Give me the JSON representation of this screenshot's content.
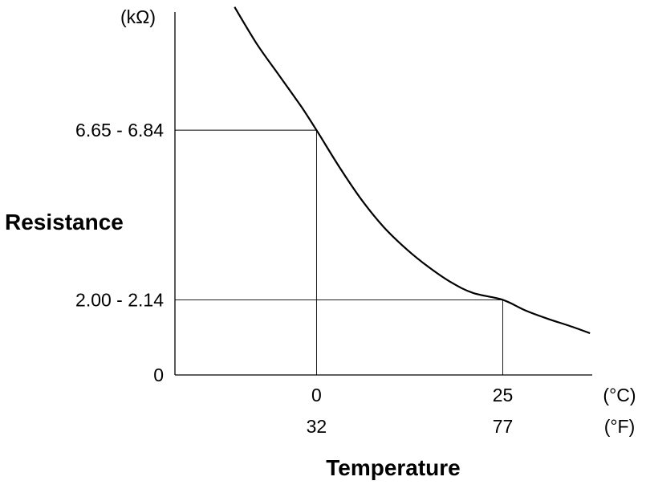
{
  "chart_data": {
    "type": "line",
    "title": "",
    "xlabel": "Temperature",
    "ylabel": "Resistance",
    "y_unit": "(kΩ)",
    "x_unit_c": "(°C)",
    "x_unit_f": "(°F)",
    "x_ticks_c": [
      "0",
      "25"
    ],
    "x_ticks_f": [
      "32",
      "77"
    ],
    "x_tick_values_c": [
      0,
      25
    ],
    "y_ticks": [
      {
        "label": "0",
        "value": 0
      },
      {
        "label": "2.00 - 2.14",
        "value": 2.07
      },
      {
        "label": "6.65 - 6.84",
        "value": 6.745
      }
    ],
    "xlim": [
      -19,
      37
    ],
    "ylim": [
      0,
      10
    ],
    "grid": false,
    "series": [
      {
        "name": "",
        "x": [
          -11,
          -8,
          -5,
          -2,
          0,
          3,
          6,
          9,
          12,
          15,
          18,
          21,
          25,
          28,
          31,
          34,
          36.7
        ],
        "y": [
          10.14,
          9.12,
          8.25,
          7.38,
          6.745,
          5.75,
          4.84,
          4.08,
          3.48,
          2.98,
          2.56,
          2.26,
          2.07,
          1.78,
          1.55,
          1.35,
          1.15
        ]
      }
    ],
    "reference_points": [
      {
        "x": 0,
        "y": 6.745
      },
      {
        "x": 25,
        "y": 2.07
      }
    ]
  }
}
